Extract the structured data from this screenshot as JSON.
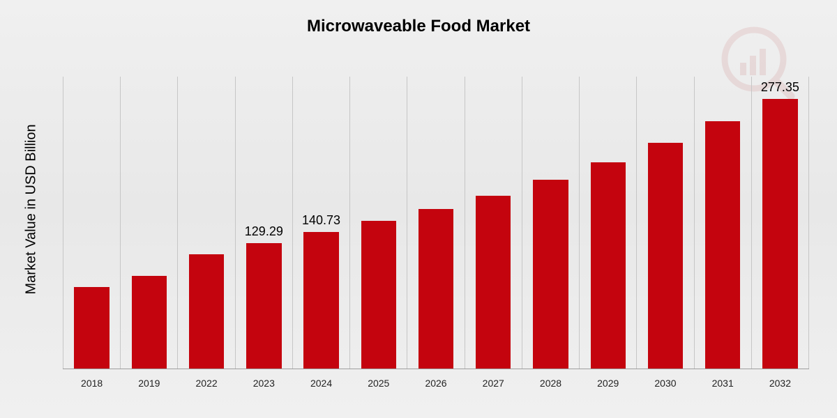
{
  "chart": {
    "type": "bar",
    "title": "Microwaveable Food Market",
    "title_fontsize": 24,
    "ylabel": "Market Value in USD Billion",
    "ylabel_fontsize": 20,
    "categories": [
      "2018",
      "2019",
      "2022",
      "2023",
      "2024",
      "2025",
      "2026",
      "2027",
      "2028",
      "2029",
      "2030",
      "2031",
      "2032"
    ],
    "values": [
      84,
      96,
      118,
      129.29,
      140.73,
      152,
      164,
      178,
      194,
      212,
      232,
      254,
      277.35
    ],
    "value_labels": {
      "3": "129.29",
      "4": "140.73",
      "12": "277.35"
    },
    "ylim": [
      0,
      300
    ],
    "bar_color": "#c4040e",
    "bar_width_pct": 62,
    "grid_color": "#c6c6c6",
    "baseline_color": "#9e9e9e",
    "background_gradient": [
      "#f0f0f0",
      "#e8e8e8",
      "#f0f0f0"
    ],
    "xtick_fontsize": 14,
    "value_label_fontsize": 18,
    "watermark_color": "#b84b4b"
  }
}
